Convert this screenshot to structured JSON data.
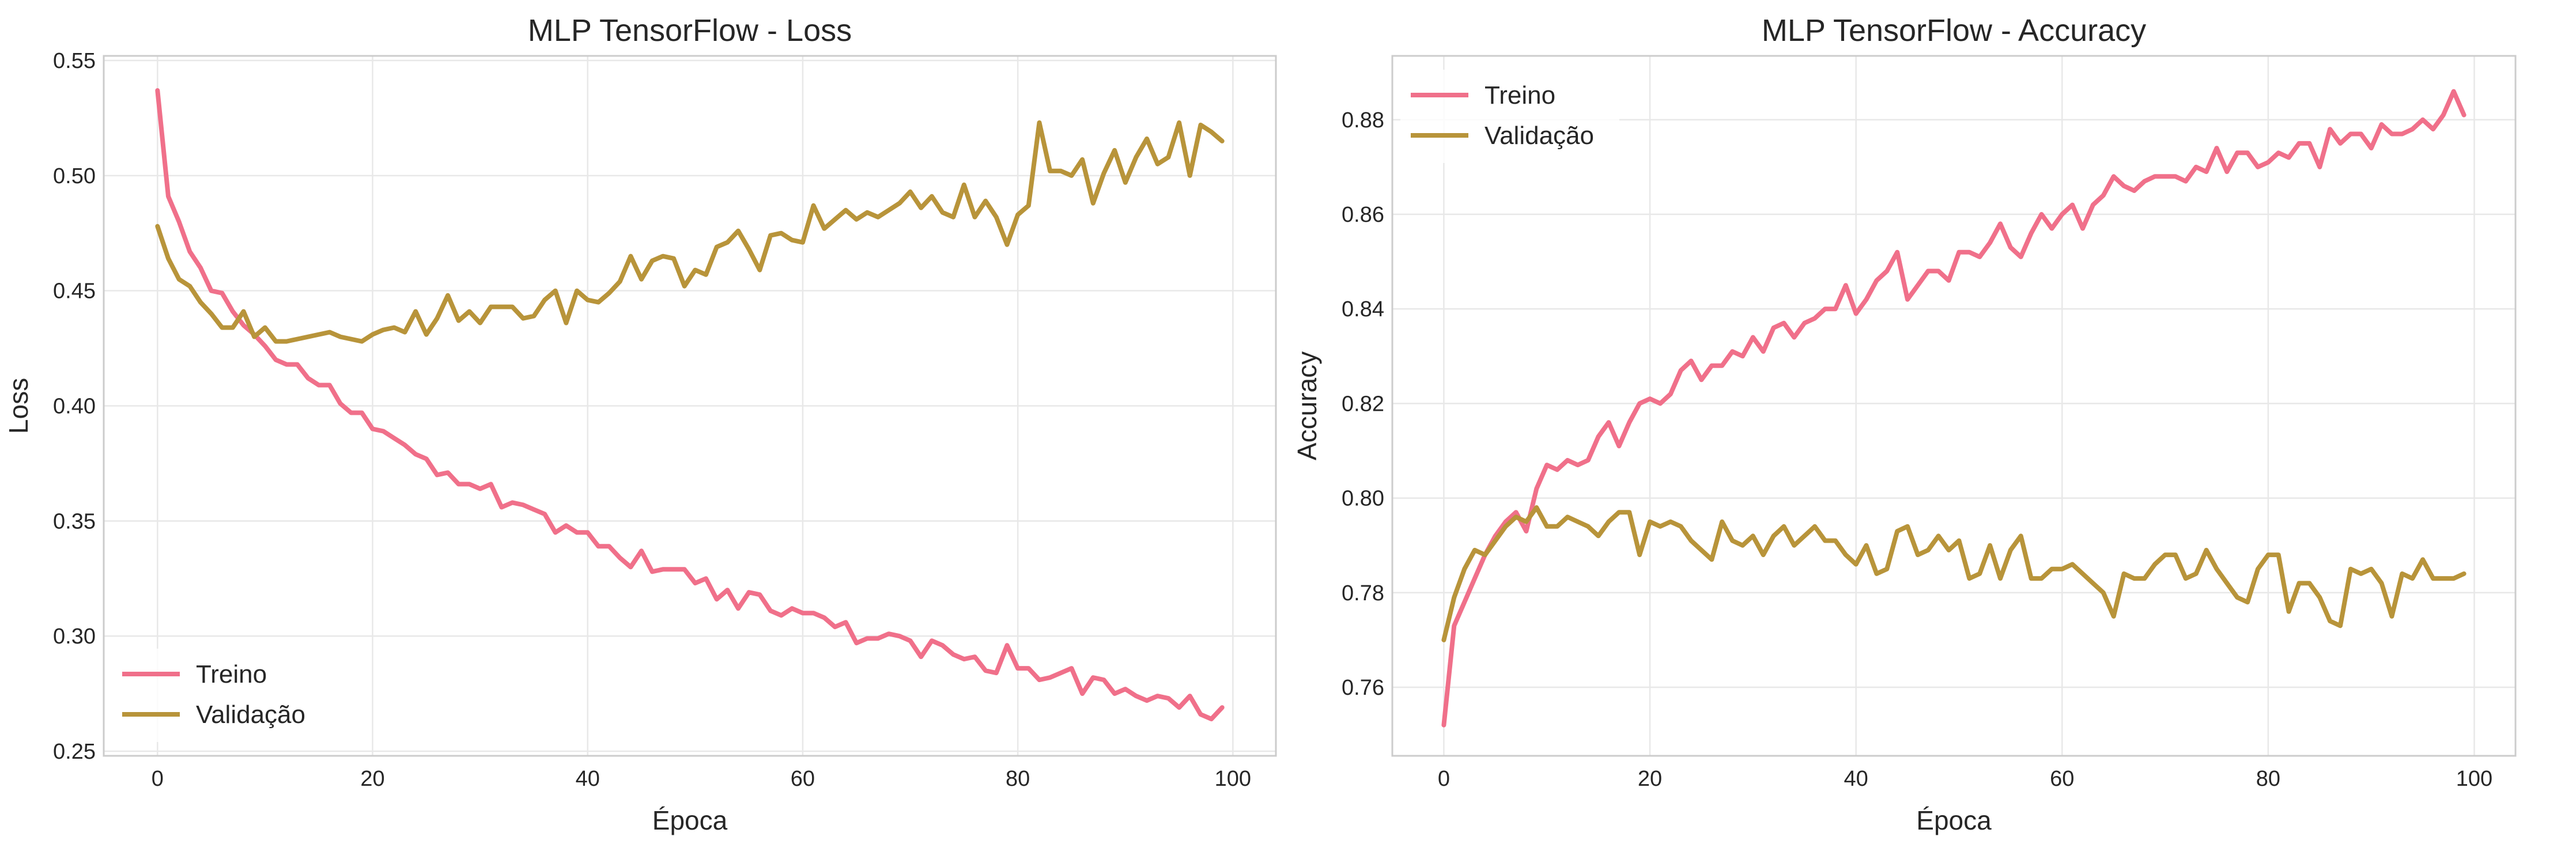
{
  "chart_data": [
    {
      "type": "line",
      "title": "MLP TensorFlow - Loss",
      "xlabel": "Época",
      "ylabel": "Loss",
      "xlim": [
        -5,
        104
      ],
      "ylim": [
        0.248,
        0.552
      ],
      "xticks": [
        0,
        20,
        40,
        60,
        80,
        100
      ],
      "yticks": [
        0.25,
        0.3,
        0.35,
        0.4,
        0.45,
        0.5,
        0.55
      ],
      "ytick_format": 2,
      "grid": true,
      "legend": "lower-left",
      "series": [
        {
          "name": "Treino",
          "color": "#f0708a",
          "x_start": 0,
          "values": [
            0.537,
            0.491,
            0.48,
            0.467,
            0.46,
            0.45,
            0.449,
            0.441,
            0.435,
            0.431,
            0.426,
            0.42,
            0.418,
            0.418,
            0.412,
            0.409,
            0.409,
            0.401,
            0.397,
            0.397,
            0.39,
            0.389,
            0.386,
            0.383,
            0.379,
            0.377,
            0.37,
            0.371,
            0.366,
            0.366,
            0.364,
            0.366,
            0.356,
            0.358,
            0.357,
            0.355,
            0.353,
            0.345,
            0.348,
            0.345,
            0.345,
            0.339,
            0.339,
            0.334,
            0.33,
            0.337,
            0.328,
            0.329,
            0.329,
            0.329,
            0.323,
            0.325,
            0.316,
            0.32,
            0.312,
            0.319,
            0.318,
            0.311,
            0.309,
            0.312,
            0.31,
            0.31,
            0.308,
            0.304,
            0.306,
            0.297,
            0.299,
            0.299,
            0.301,
            0.3,
            0.298,
            0.291,
            0.298,
            0.296,
            0.292,
            0.29,
            0.291,
            0.285,
            0.284,
            0.296,
            0.286,
            0.286,
            0.281,
            0.282,
            0.284,
            0.286,
            0.275,
            0.282,
            0.281,
            0.275,
            0.277,
            0.274,
            0.272,
            0.274,
            0.273,
            0.269,
            0.274,
            0.266,
            0.264,
            0.269
          ]
        },
        {
          "name": "Validação",
          "color": "#b8943a",
          "x_start": 0,
          "values": [
            0.478,
            0.464,
            0.455,
            0.452,
            0.445,
            0.44,
            0.434,
            0.434,
            0.441,
            0.43,
            0.434,
            0.428,
            0.428,
            0.429,
            0.43,
            0.431,
            0.432,
            0.43,
            0.429,
            0.428,
            0.431,
            0.433,
            0.434,
            0.432,
            0.441,
            0.431,
            0.438,
            0.448,
            0.437,
            0.441,
            0.436,
            0.443,
            0.443,
            0.443,
            0.438,
            0.439,
            0.446,
            0.45,
            0.436,
            0.45,
            0.446,
            0.445,
            0.449,
            0.454,
            0.465,
            0.455,
            0.463,
            0.465,
            0.464,
            0.452,
            0.459,
            0.457,
            0.469,
            0.471,
            0.476,
            0.468,
            0.459,
            0.474,
            0.475,
            0.472,
            0.471,
            0.487,
            0.477,
            0.481,
            0.485,
            0.481,
            0.484,
            0.482,
            0.485,
            0.488,
            0.493,
            0.486,
            0.491,
            0.484,
            0.482,
            0.496,
            0.482,
            0.489,
            0.482,
            0.47,
            0.483,
            0.487,
            0.523,
            0.502,
            0.502,
            0.5,
            0.507,
            0.488,
            0.501,
            0.511,
            0.497,
            0.508,
            0.516,
            0.505,
            0.508,
            0.523,
            0.5,
            0.522,
            0.519,
            0.515
          ]
        }
      ]
    },
    {
      "type": "line",
      "title": "MLP TensorFlow - Accuracy",
      "xlabel": "Época",
      "ylabel": "Accuracy",
      "xlim": [
        -5,
        104
      ],
      "ylim": [
        0.7455,
        0.8935
      ],
      "xticks": [
        0,
        20,
        40,
        60,
        80,
        100
      ],
      "yticks": [
        0.76,
        0.78,
        0.8,
        0.82,
        0.84,
        0.86,
        0.88
      ],
      "ytick_format": 2,
      "grid": true,
      "legend": "upper-left",
      "series": [
        {
          "name": "Treino",
          "color": "#f0708a",
          "x_start": 0,
          "values": [
            0.752,
            0.773,
            0.778,
            0.783,
            0.788,
            0.792,
            0.795,
            0.797,
            0.793,
            0.802,
            0.807,
            0.806,
            0.808,
            0.807,
            0.808,
            0.813,
            0.816,
            0.811,
            0.816,
            0.82,
            0.821,
            0.82,
            0.822,
            0.827,
            0.829,
            0.825,
            0.828,
            0.828,
            0.831,
            0.83,
            0.834,
            0.831,
            0.836,
            0.837,
            0.834,
            0.837,
            0.838,
            0.84,
            0.84,
            0.845,
            0.839,
            0.842,
            0.846,
            0.848,
            0.852,
            0.842,
            0.845,
            0.848,
            0.848,
            0.846,
            0.852,
            0.852,
            0.851,
            0.854,
            0.858,
            0.853,
            0.851,
            0.856,
            0.86,
            0.857,
            0.86,
            0.862,
            0.857,
            0.862,
            0.864,
            0.868,
            0.866,
            0.865,
            0.867,
            0.868,
            0.868,
            0.868,
            0.867,
            0.87,
            0.869,
            0.874,
            0.869,
            0.873,
            0.873,
            0.87,
            0.871,
            0.873,
            0.872,
            0.875,
            0.875,
            0.87,
            0.878,
            0.875,
            0.877,
            0.877,
            0.874,
            0.879,
            0.877,
            0.877,
            0.878,
            0.88,
            0.878,
            0.881,
            0.886,
            0.881
          ]
        },
        {
          "name": "Validação",
          "color": "#b8943a",
          "x_start": 0,
          "values": [
            0.77,
            0.779,
            0.785,
            0.789,
            0.788,
            0.791,
            0.794,
            0.796,
            0.795,
            0.798,
            0.794,
            0.794,
            0.796,
            0.795,
            0.794,
            0.792,
            0.795,
            0.797,
            0.797,
            0.788,
            0.795,
            0.794,
            0.795,
            0.794,
            0.791,
            0.789,
            0.787,
            0.795,
            0.791,
            0.79,
            0.792,
            0.788,
            0.792,
            0.794,
            0.79,
            0.792,
            0.794,
            0.791,
            0.791,
            0.788,
            0.786,
            0.79,
            0.784,
            0.785,
            0.793,
            0.794,
            0.788,
            0.789,
            0.792,
            0.789,
            0.791,
            0.783,
            0.784,
            0.79,
            0.783,
            0.789,
            0.792,
            0.783,
            0.783,
            0.785,
            0.785,
            0.786,
            0.784,
            0.782,
            0.78,
            0.775,
            0.784,
            0.783,
            0.783,
            0.786,
            0.788,
            0.788,
            0.783,
            0.784,
            0.789,
            0.785,
            0.782,
            0.779,
            0.778,
            0.785,
            0.788,
            0.788,
            0.776,
            0.782,
            0.782,
            0.779,
            0.774,
            0.773,
            0.785,
            0.784,
            0.785,
            0.782,
            0.775,
            0.784,
            0.783,
            0.787,
            0.783,
            0.783,
            0.783,
            0.784
          ]
        }
      ]
    }
  ]
}
